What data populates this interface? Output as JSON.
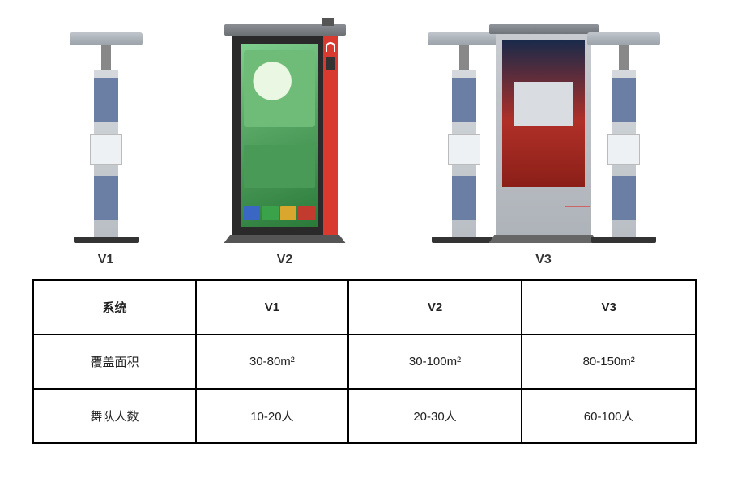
{
  "products": {
    "v1": {
      "label": "V1"
    },
    "v2": {
      "label": "V2",
      "bin_colors": [
        "#3a66c4",
        "#3aa24a",
        "#d9a62e",
        "#c23b2e"
      ]
    },
    "v3": {
      "label": "V3"
    }
  },
  "table": {
    "header": {
      "system": "系统",
      "c1": "V1",
      "c2": "V2",
      "c3": "V3"
    },
    "rows": [
      {
        "label": "覆盖面积",
        "c1": "30-80m²",
        "c2": "30-100m²",
        "c3": "80-150m²"
      },
      {
        "label": "舞队人数",
        "c1": "10-20人",
        "c2": "20-30人",
        "c3": "60-100人"
      }
    ]
  },
  "colors": {
    "table_border": "#000000",
    "text": "#222222",
    "v2_accent": "#d83a2f",
    "pole_blue": "#6a7fa3"
  }
}
